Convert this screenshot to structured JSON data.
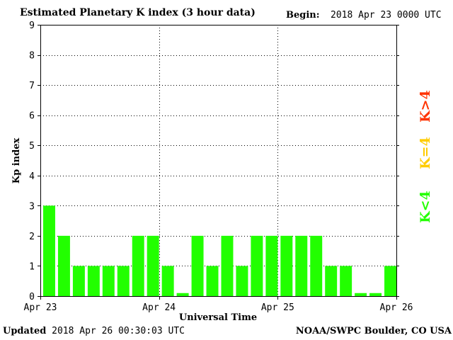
{
  "header": {
    "title": "Estimated Planetary K index (3 hour data)",
    "begin_label": "Begin:",
    "begin_value": "2018 Apr 23 0000 UTC"
  },
  "footer": {
    "updated_label": "Updated",
    "updated_value": "2018 Apr 26 00:30:03 UTC",
    "credit": "NOAA/SWPC Boulder, CO USA"
  },
  "legend": {
    "high": {
      "label": "K>4",
      "color": "#ff3300"
    },
    "equal": {
      "label": "K=4",
      "color": "#ffcc00"
    },
    "low": {
      "label": "K<4",
      "color": "#22ff00"
    }
  },
  "colors": {
    "bar": "#22ff00",
    "grid": "#000000",
    "frame": "#000000"
  },
  "chart_data": {
    "type": "bar",
    "title": "Estimated Planetary K index (3 hour data)",
    "xlabel": "Universal Time",
    "ylabel": "Kp index",
    "ylim": [
      0,
      9
    ],
    "yticks": [
      0,
      1,
      2,
      3,
      4,
      5,
      6,
      7,
      8,
      9
    ],
    "xticks": [
      "Apr 23",
      "Apr 24",
      "Apr 25",
      "Apr 26"
    ],
    "grid": true,
    "legend_position": "right",
    "values": [
      3,
      2,
      1,
      1,
      1,
      1,
      2,
      2,
      1,
      0.1,
      2,
      1,
      2,
      1,
      2,
      2,
      2,
      2,
      2,
      1,
      1,
      0.1,
      0.1,
      1
    ]
  }
}
